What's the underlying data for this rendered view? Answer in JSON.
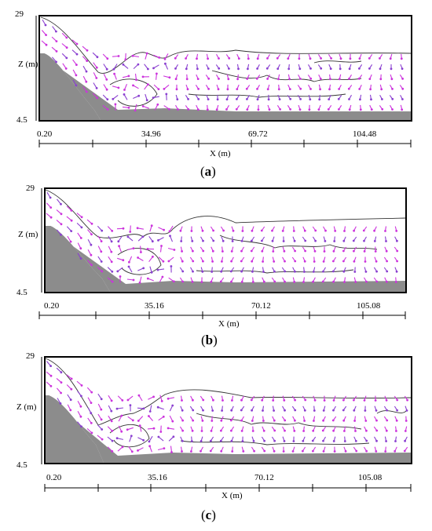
{
  "panels": [
    {
      "id": "a",
      "caption": "a",
      "z_top": "29",
      "z_bottom": "4.5",
      "z_label": "Z (m)",
      "x_label": "X (m)",
      "x_ticks": [
        "0.20",
        "34.96",
        "69.72",
        "104.48"
      ]
    },
    {
      "id": "b",
      "caption": "b",
      "z_top": "29",
      "z_bottom": "4.5",
      "z_label": "Z (m)",
      "x_label": "X (m)",
      "x_ticks": [
        "0.20",
        "35.16",
        "70.12",
        "105.08"
      ]
    },
    {
      "id": "c",
      "caption": "c",
      "z_top": "29",
      "z_bottom": "4.5",
      "z_label": "Z (m)",
      "x_label": "X (m)",
      "x_ticks": [
        "0.20",
        "35.16",
        "70.12",
        "105.08"
      ]
    }
  ],
  "colors": {
    "vector": "#cc33dd",
    "vector_dark": "#8a3fd0",
    "terrain": "#8c8c8c",
    "contour": "#333333"
  }
}
